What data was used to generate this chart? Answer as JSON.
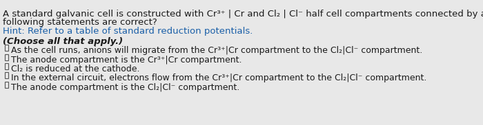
{
  "bg_color": "#e8e8e8",
  "line1": "A standard galvanic cell is constructed with Cr³⁺ | Cr and Cl₂ | Cl⁻ half cell compartments connected by a salt bridge. Which of the",
  "line2": "following statements are correct?",
  "hint": "Hint: Refer to a table of standard reduction potentials.",
  "choose": "(Choose all that apply.)",
  "options": [
    "As the cell runs, anions will migrate from the Cr³⁺|Cr compartment to the Cl₂|Cl⁻ compartment.",
    "The anode compartment is the Cr³⁺|Cr compartment.",
    "Cl₂ is reduced at the cathode.",
    "In the external circuit, electrons flow from the Cr³⁺|Cr compartment to the Cl₂|Cl⁻ compartment.",
    "The anode compartment is the Cl₂|Cl⁻ compartment."
  ],
  "text_color": "#1a1a1a",
  "hint_color": "#1a5fa8",
  "font_size_main": 9.5,
  "font_size_hint": 9.5,
  "font_size_choose": 9.5,
  "font_size_option": 9.0
}
